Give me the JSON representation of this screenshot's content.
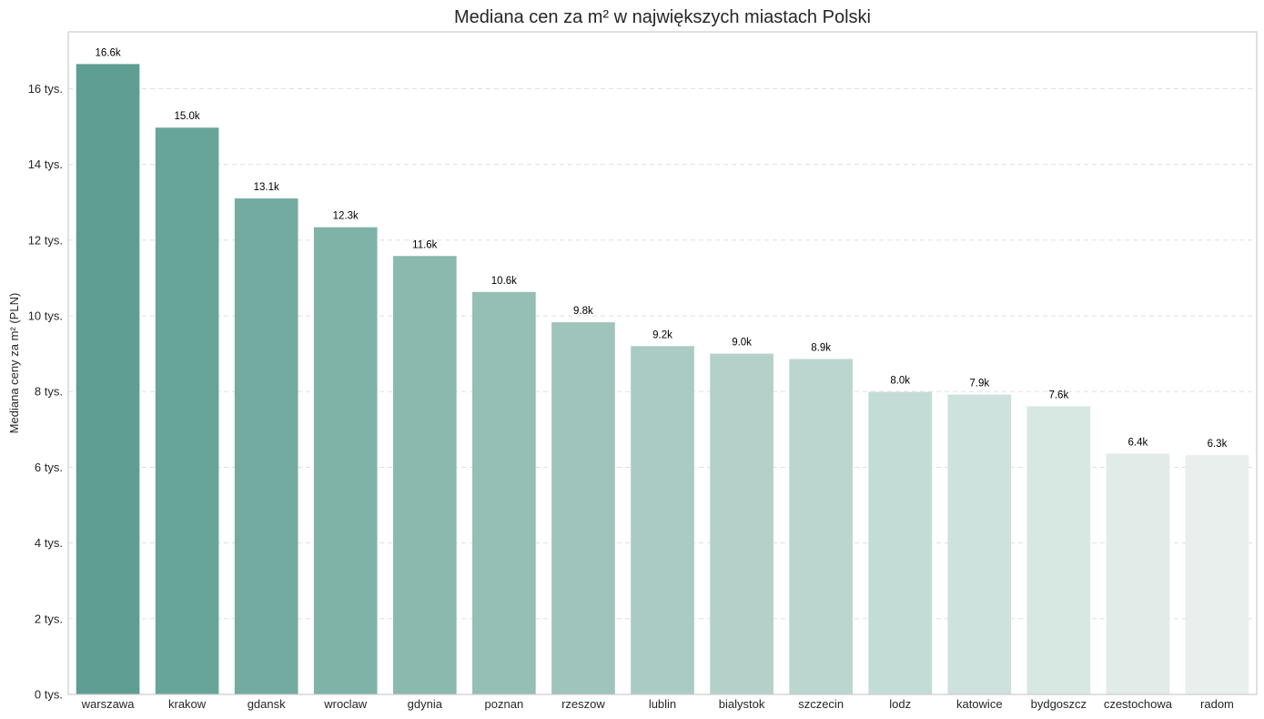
{
  "chart_data": {
    "type": "bar",
    "title": "Mediana cen za m² w największych miastach Polski",
    "xlabel": "",
    "ylabel": "Mediana ceny za m² (PLN)",
    "categories": [
      "warszawa",
      "krakow",
      "gdansk",
      "wroclaw",
      "gdynia",
      "poznan",
      "rzeszow",
      "lublin",
      "bialystok",
      "szczecin",
      "lodz",
      "katowice",
      "bydgoszcz",
      "czestochowa",
      "radom"
    ],
    "values": [
      16650,
      14970,
      13100,
      12340,
      11580,
      10630,
      9830,
      9200,
      9000,
      8860,
      7990,
      7920,
      7610,
      6360,
      6320
    ],
    "data_labels": [
      "16.6k",
      "15.0k",
      "13.1k",
      "12.3k",
      "11.6k",
      "10.6k",
      "9.8k",
      "9.2k",
      "9.0k",
      "8.9k",
      "8.0k",
      "7.9k",
      "7.6k",
      "6.4k",
      "6.3k"
    ],
    "bar_colors": [
      "#5f9e92",
      "#67a599",
      "#73aba0",
      "#7fb3a7",
      "#8ab9ae",
      "#95beb4",
      "#9fc4bb",
      "#a9cbc3",
      "#b3d1c9",
      "#bbd6cf",
      "#c4dcd6",
      "#ceE2dd",
      "#d7e8e3",
      "#e1ece9",
      "#e8efed"
    ],
    "yticks": [
      0,
      2000,
      4000,
      6000,
      8000,
      10000,
      12000,
      14000,
      16000
    ],
    "ytick_labels": [
      "0 tys.",
      "2 tys.",
      "4 tys.",
      "6 tys.",
      "8 tys.",
      "10 tys.",
      "12 tys.",
      "14 tys.",
      "16 tys."
    ],
    "ylim": [
      0,
      17500
    ],
    "grid": "y-dashed",
    "legend": "none"
  }
}
